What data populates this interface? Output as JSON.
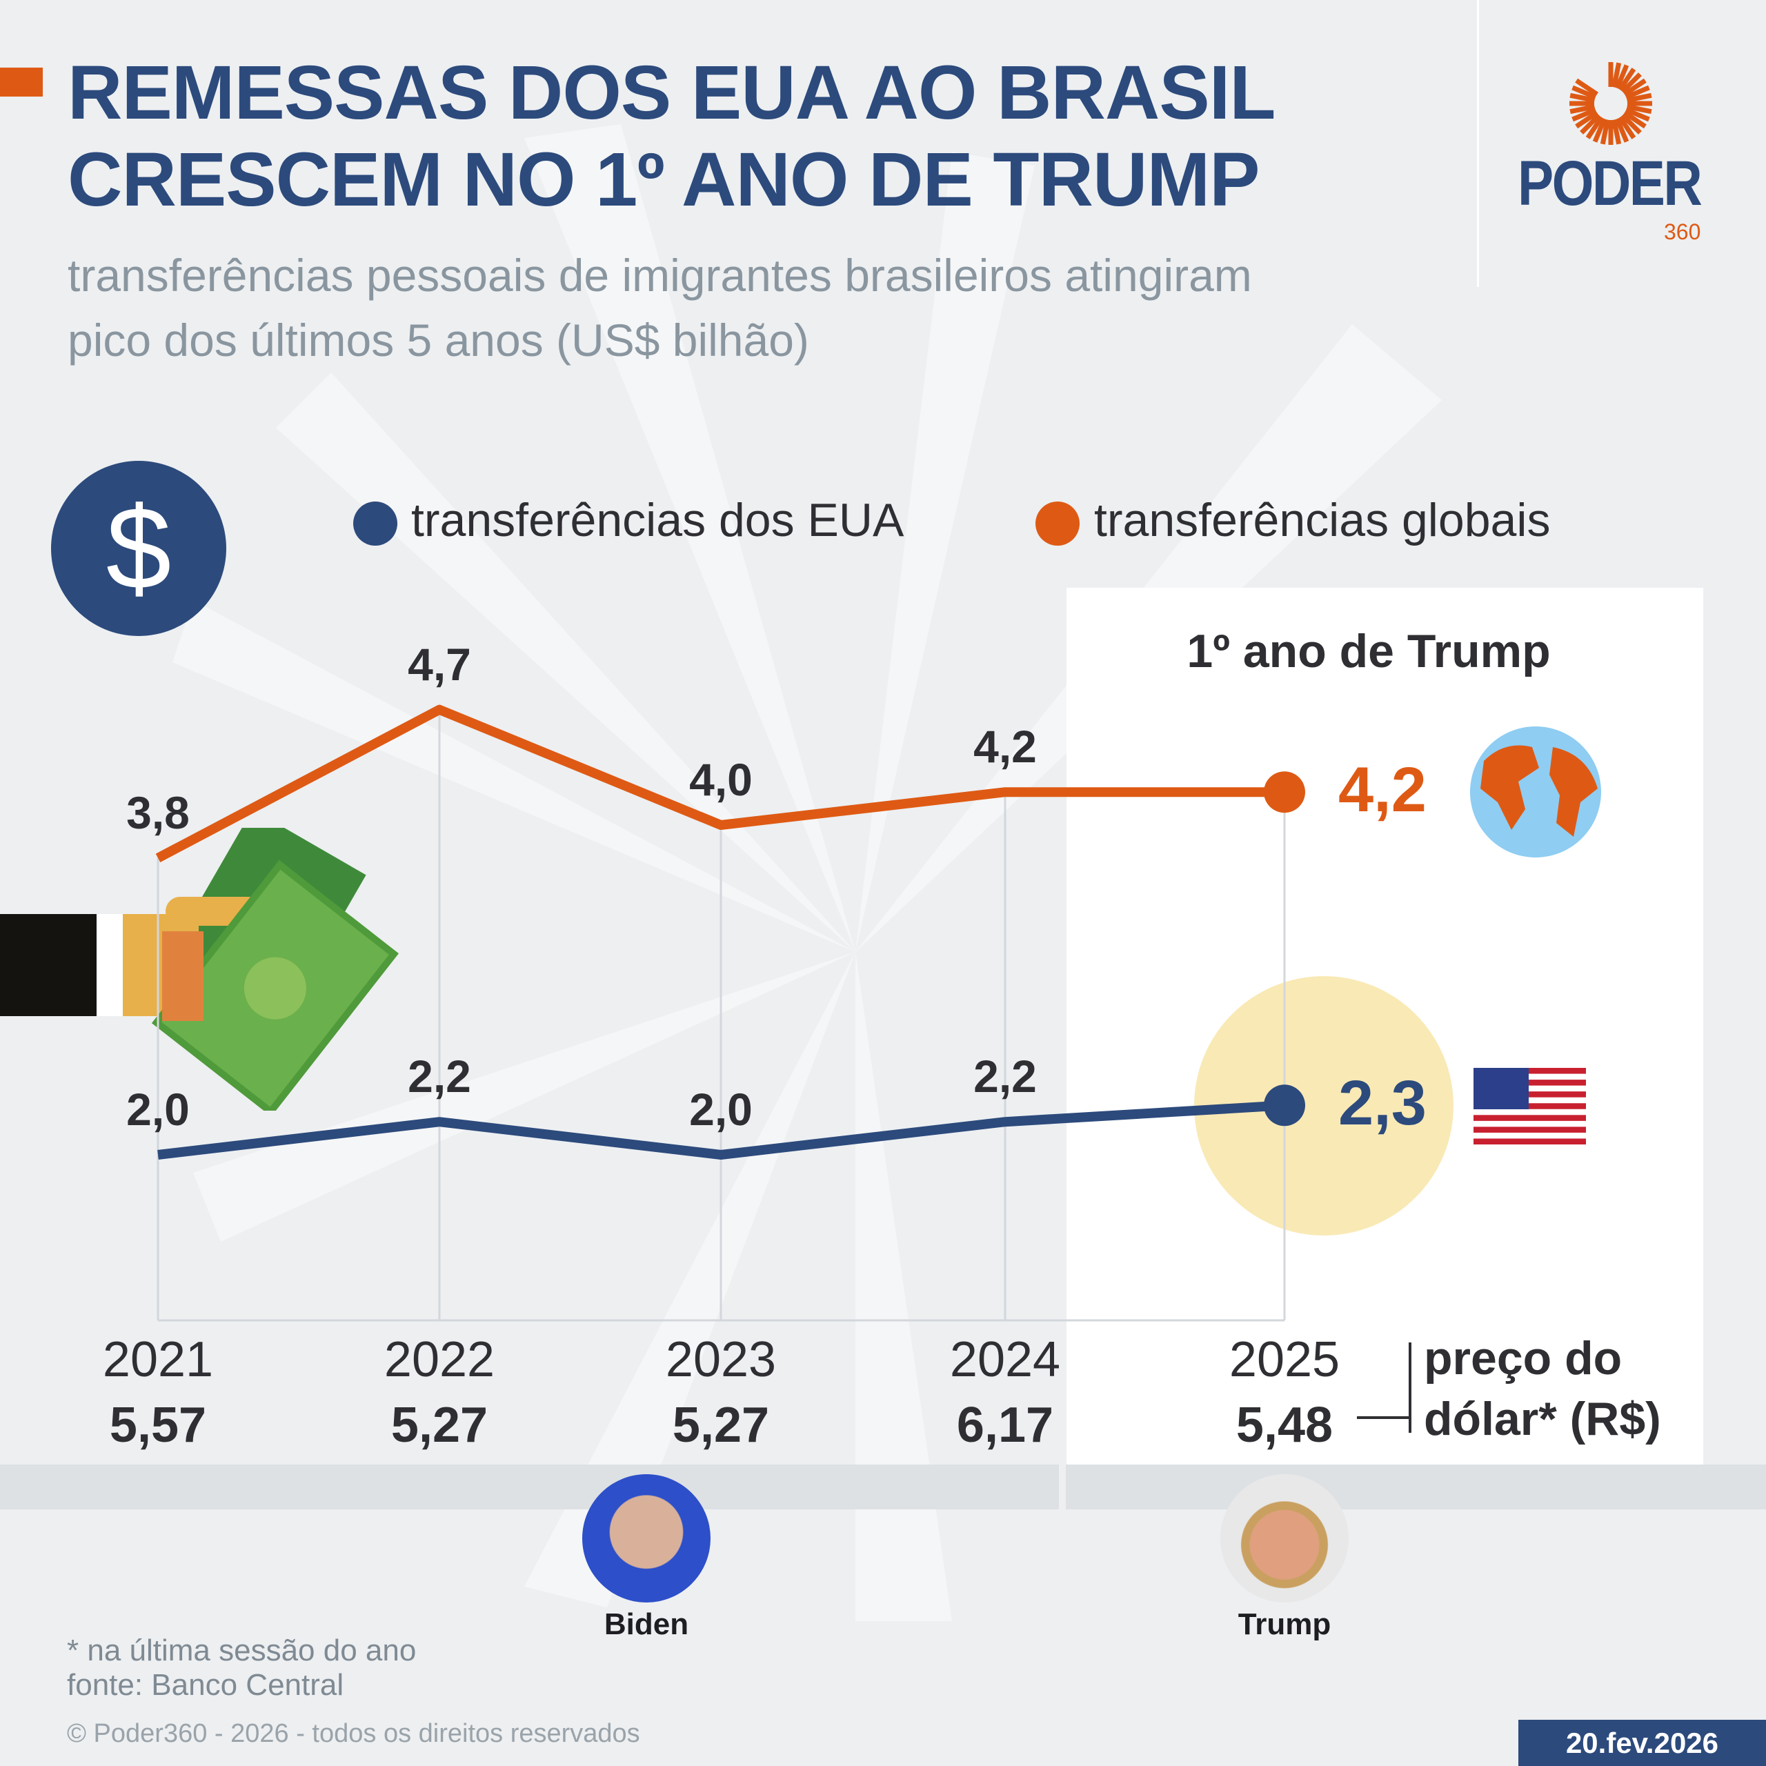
{
  "header": {
    "title_line1": "REMESSAS DOS EUA AO BRASIL",
    "title_line2": "CRESCEM NO 1º ANO DE TRUMP",
    "subtitle_line1": "transferências pessoais de imigrantes brasileiros atingiram",
    "subtitle_line2": "pico dos últimos 5 anos (US$ bilhão)"
  },
  "logo": {
    "text": "PODER",
    "number": "360"
  },
  "highlight_label": "1º ano de Trump",
  "currency_label_line1": "preço do",
  "currency_label_line2": "dólar* (R$)",
  "presidents": [
    {
      "name": "Biden"
    },
    {
      "name": "Trump"
    }
  ],
  "footnote": "* na última sessão do ano",
  "source": "fonte: Banco Central",
  "copyright": "© Poder360 - 2026 - todos os direitos reservados",
  "date": "20.fev.2026",
  "colors": {
    "navy": "#2c4a7c",
    "orange": "#de5a14",
    "highlight_circle": "#f9e9b5"
  },
  "chart_data": {
    "type": "line",
    "categories": [
      "2021",
      "2022",
      "2023",
      "2024",
      "2025"
    ],
    "series": [
      {
        "name": "transferências dos EUA",
        "color": "#2c4a7c",
        "values": [
          2.0,
          2.2,
          2.0,
          2.2,
          2.3
        ],
        "labels": [
          "2,0",
          "2,2",
          "2,0",
          "2,2",
          "2,3"
        ]
      },
      {
        "name": "transferências globais",
        "color": "#de5a14",
        "values": [
          3.8,
          4.7,
          4.0,
          4.2,
          4.2
        ],
        "labels": [
          "3,8",
          "4,7",
          "4,0",
          "4,2",
          "4,2"
        ]
      }
    ],
    "dollar_price": [
      "5,57",
      "5,27",
      "5,27",
      "6,17",
      "5,48"
    ],
    "legend": "top"
  }
}
